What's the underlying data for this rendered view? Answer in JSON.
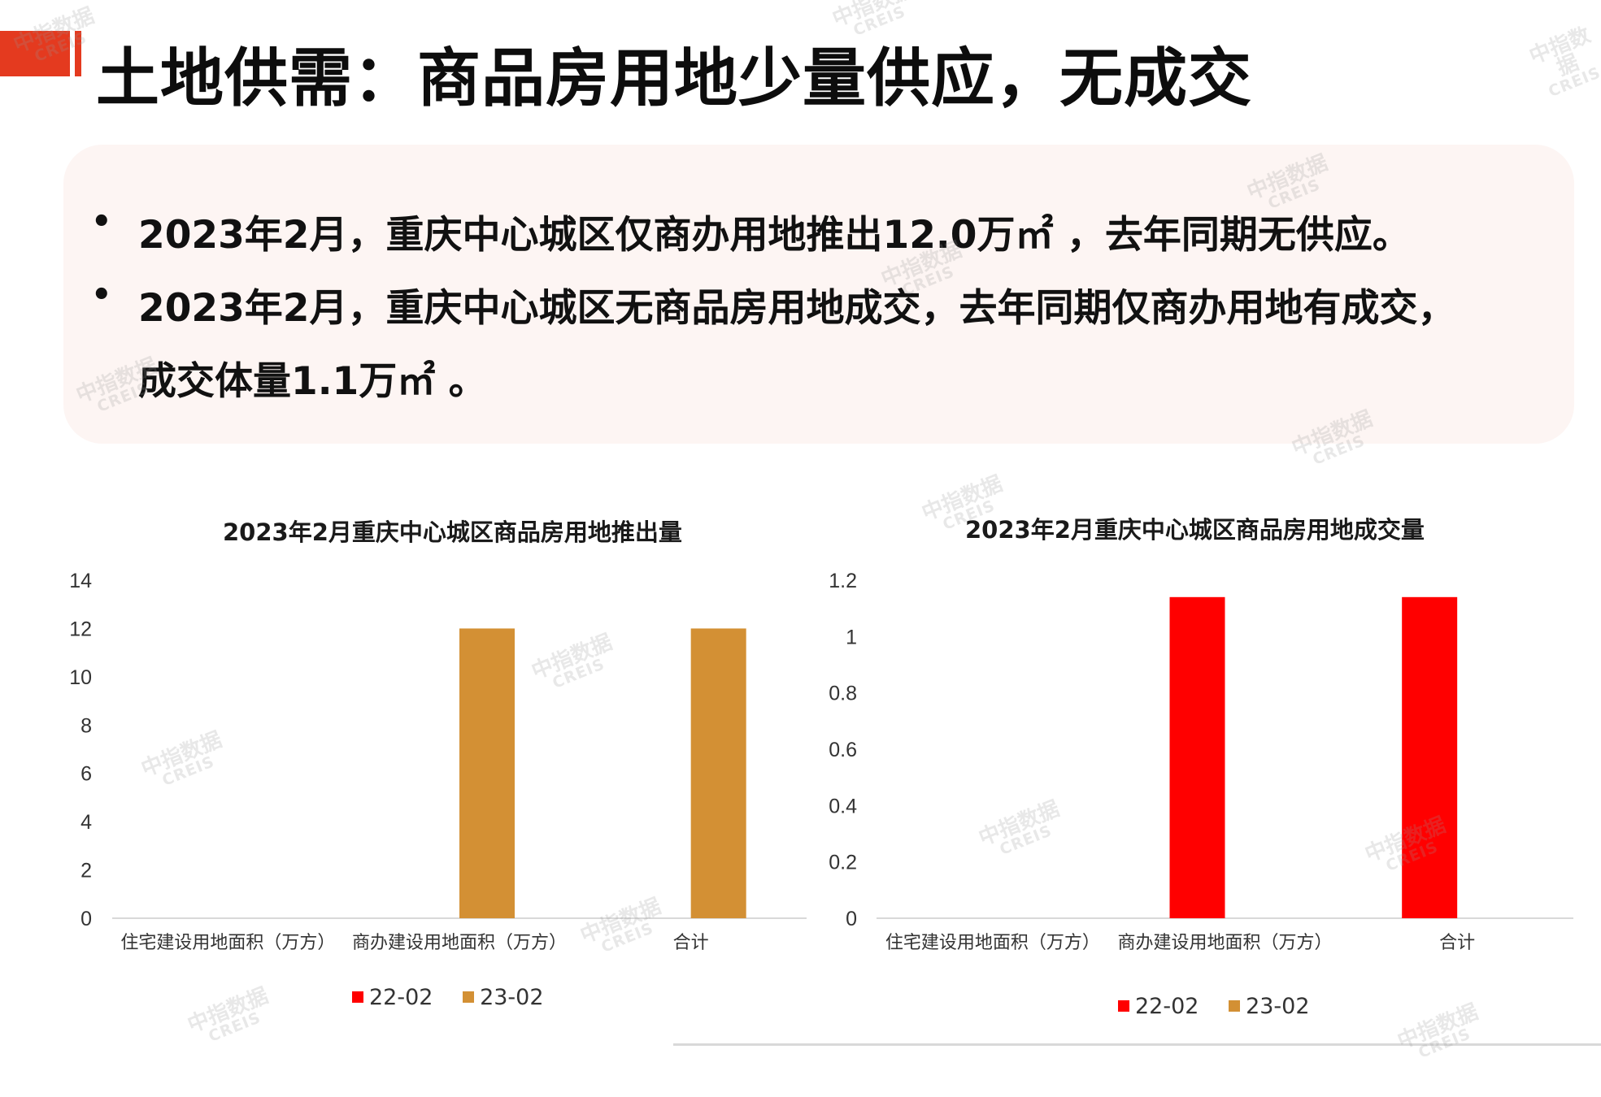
{
  "title": "土地供需：商品房用地少量供应，无成交",
  "bullets": [
    "2023年2月，重庆中心城区仅商办用地推出12.0万㎡ ，去年同期无供应。",
    "2023年2月，重庆中心城区无商品房用地成交，去年同期仅商办用地有成交，",
    "成交体量1.1万㎡ 。"
  ],
  "bullet_symbol": "•",
  "watermark": {
    "cn": "中指数据",
    "en": "CREIS"
  },
  "colors": {
    "accent": "#e43a1f",
    "series_22": "#ff0000",
    "series_23": "#d39034"
  },
  "chart_data": [
    {
      "type": "bar",
      "title": "2023年2月重庆中心城区商品房用地推出量",
      "categories": [
        "住宅建设用地面积（万方）",
        "商办建设用地面积（万方）",
        "合计"
      ],
      "series": [
        {
          "name": "22-02",
          "values": [
            0,
            0,
            0
          ]
        },
        {
          "name": "23-02",
          "values": [
            0,
            12.0,
            12.0
          ]
        }
      ],
      "ylim": [
        0,
        14
      ],
      "yticks": [
        "0",
        "2",
        "4",
        "6",
        "8",
        "10",
        "12",
        "14"
      ],
      "legend": "bottom"
    },
    {
      "type": "bar",
      "title": "2023年2月重庆中心城区商品房用地成交量",
      "categories": [
        "住宅建设用地面积（万方）",
        "商办建设用地面积（万方）",
        "合计"
      ],
      "series": [
        {
          "name": "22-02",
          "values": [
            0,
            1.14,
            1.14
          ]
        },
        {
          "name": "23-02",
          "values": [
            0,
            0,
            0
          ]
        }
      ],
      "ylim": [
        0,
        1.2
      ],
      "yticks": [
        "0",
        "0.2",
        "0.4",
        "0.6",
        "0.8",
        "1",
        "1.2"
      ],
      "legend": "bottom"
    }
  ]
}
